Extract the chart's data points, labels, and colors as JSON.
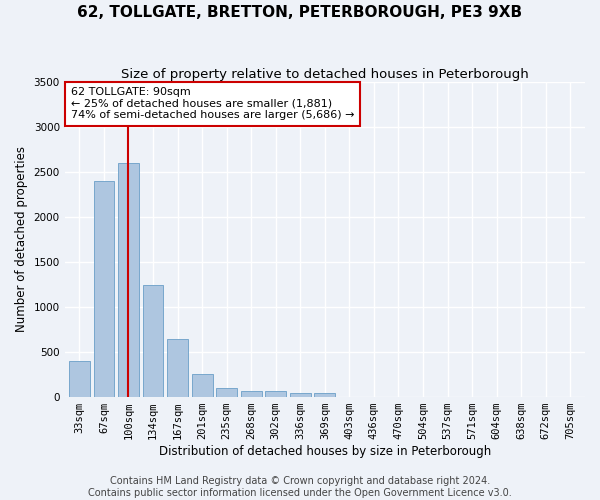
{
  "title": "62, TOLLGATE, BRETTON, PETERBOROUGH, PE3 9XB",
  "subtitle": "Size of property relative to detached houses in Peterborough",
  "xlabel": "Distribution of detached houses by size in Peterborough",
  "ylabel": "Number of detached properties",
  "categories": [
    "33sqm",
    "67sqm",
    "100sqm",
    "134sqm",
    "167sqm",
    "201sqm",
    "235sqm",
    "268sqm",
    "302sqm",
    "336sqm",
    "369sqm",
    "403sqm",
    "436sqm",
    "470sqm",
    "504sqm",
    "537sqm",
    "571sqm",
    "604sqm",
    "638sqm",
    "672sqm",
    "705sqm"
  ],
  "values": [
    390,
    2400,
    2600,
    1240,
    640,
    255,
    100,
    60,
    60,
    45,
    35,
    0,
    0,
    0,
    0,
    0,
    0,
    0,
    0,
    0,
    0
  ],
  "bar_color": "#aec6e0",
  "bar_edge_color": "#6a9fc8",
  "highlight_bar_index": 2,
  "highlight_line_color": "#cc0000",
  "ylim": [
    0,
    3500
  ],
  "yticks": [
    0,
    500,
    1000,
    1500,
    2000,
    2500,
    3000,
    3500
  ],
  "annotation_text": "62 TOLLGATE: 90sqm\n← 25% of detached houses are smaller (1,881)\n74% of semi-detached houses are larger (5,686) →",
  "annotation_box_color": "#ffffff",
  "annotation_border_color": "#cc0000",
  "footer_text": "Contains HM Land Registry data © Crown copyright and database right 2024.\nContains public sector information licensed under the Open Government Licence v3.0.",
  "bg_color": "#eef2f8",
  "grid_color": "#ffffff",
  "title_fontsize": 11,
  "subtitle_fontsize": 9.5,
  "axis_label_fontsize": 8.5,
  "tick_fontsize": 7.5,
  "annotation_fontsize": 8,
  "footer_fontsize": 7
}
